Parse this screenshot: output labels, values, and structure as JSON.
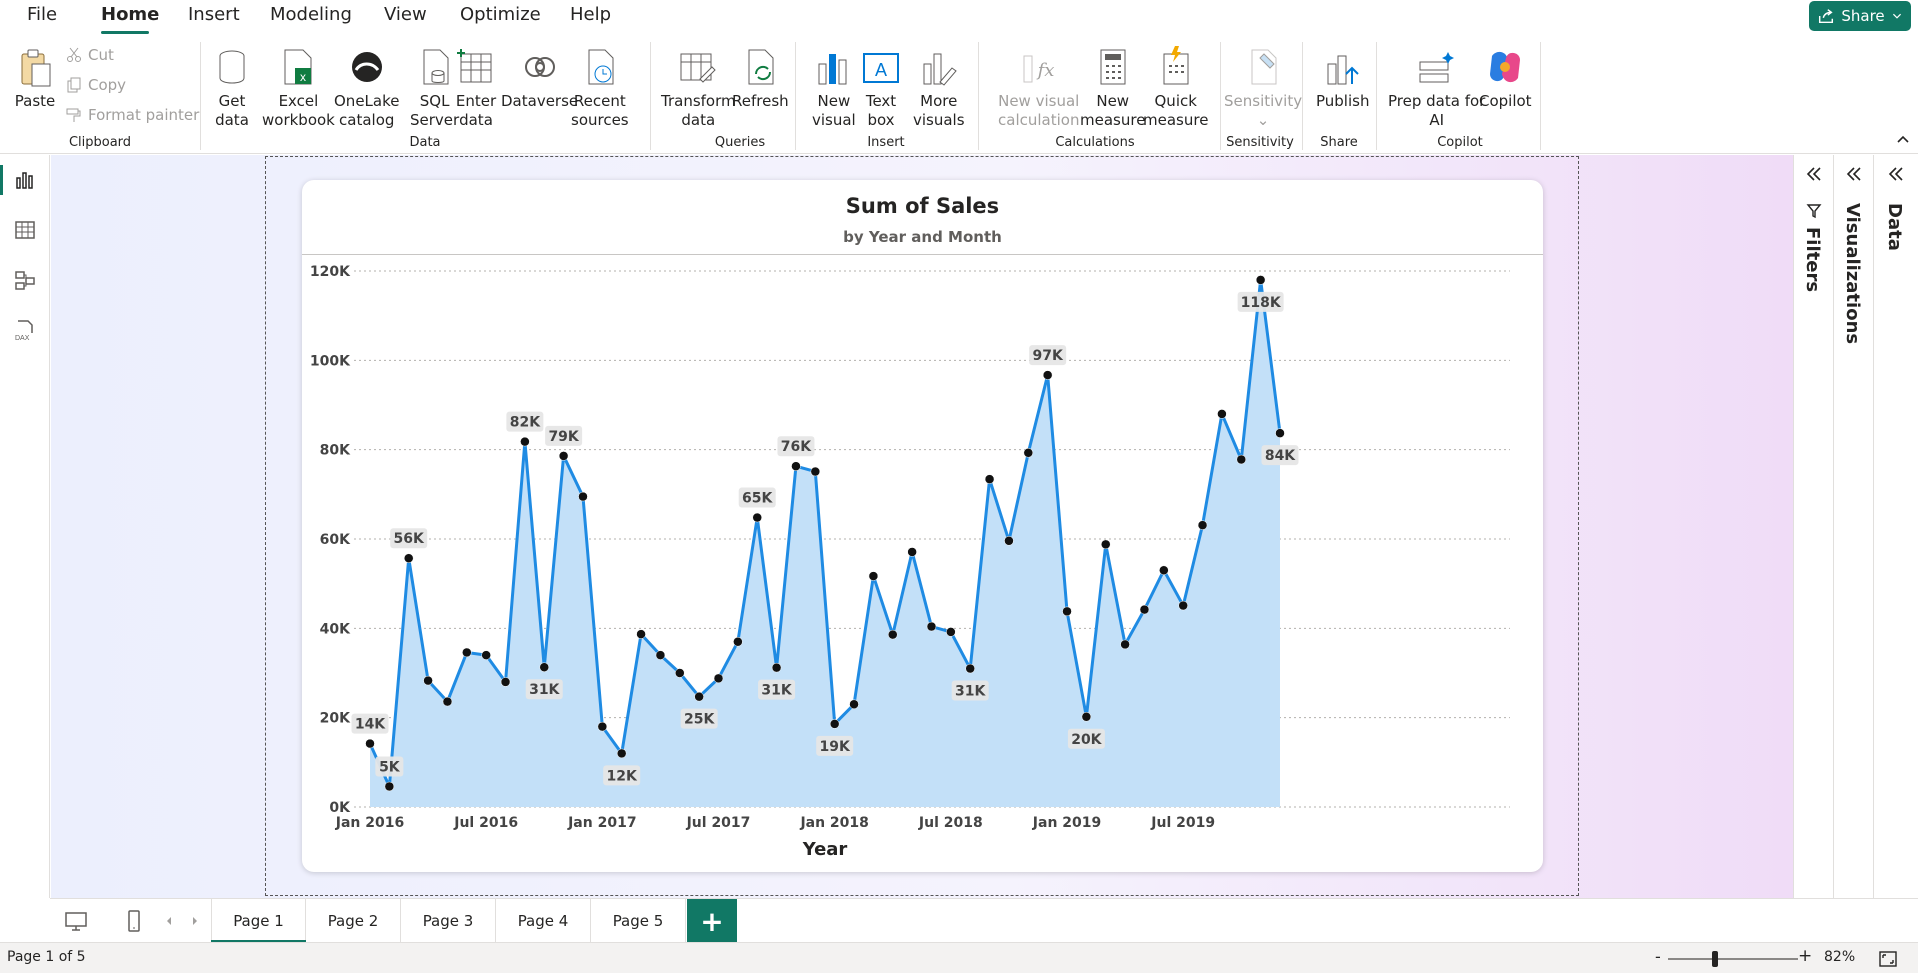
{
  "menu": {
    "items": [
      "File",
      "Home",
      "Insert",
      "Modeling",
      "View",
      "Optimize",
      "Help"
    ],
    "share_label": "Share"
  },
  "ribbon": {
    "clipboard": {
      "paste": "Paste",
      "cut": "Cut",
      "copy": "Copy",
      "format_painter": "Format painter",
      "label": "Clipboard"
    },
    "data": {
      "get_data": [
        "Get",
        "data"
      ],
      "excel": [
        "Excel",
        "workbook"
      ],
      "onelake": [
        "OneLake",
        "catalog"
      ],
      "sql": [
        "SQL",
        "Server"
      ],
      "enter": [
        "Enter",
        "data"
      ],
      "dataverse": "Dataverse",
      "recent": [
        "Recent",
        "sources"
      ],
      "label": "Data"
    },
    "queries": {
      "transform": [
        "Transform",
        "data"
      ],
      "refresh": "Refresh",
      "label": "Queries"
    },
    "insert": {
      "new_visual": [
        "New",
        "visual"
      ],
      "text_box": [
        "Text",
        "box"
      ],
      "more_visuals": [
        "More",
        "visuals"
      ],
      "label": "Insert"
    },
    "calculations": {
      "new_visual_calc": [
        "New visual",
        "calculation"
      ],
      "new_measure": [
        "New",
        "measure"
      ],
      "quick_measure": [
        "Quick",
        "measure"
      ],
      "label": "Calculations"
    },
    "sensitivity": {
      "button": "Sensitivity",
      "label": "Sensitivity"
    },
    "share": {
      "publish": "Publish",
      "label": "Share"
    },
    "copilot": {
      "prep": [
        "Prep data for",
        "AI"
      ],
      "copilot": "Copilot",
      "label": "Copilot"
    }
  },
  "panes": {
    "filters": "Filters",
    "visualizations": "Visualizations",
    "data": "Data"
  },
  "pages": [
    "Page 1",
    "Page 2",
    "Page 3",
    "Page 4",
    "Page 5"
  ],
  "add_page": "+",
  "status": {
    "text": "Page 1 of 5",
    "zoom_minus": "-",
    "zoom_plus": "+",
    "zoom": "82%",
    "zoom_fraction": 0.36
  },
  "chart_data": {
    "type": "area",
    "title": "Sum of Sales",
    "subtitle": "by Year and Month",
    "xlabel": "Year",
    "ylabel": "",
    "ylim": [
      0,
      120000
    ],
    "yticks": [
      0,
      20000,
      40000,
      60000,
      80000,
      100000,
      120000
    ],
    "ytick_labels": [
      "0K",
      "20K",
      "40K",
      "60K",
      "80K",
      "100K",
      "120K"
    ],
    "xtick_labels": [
      "Jan 2016",
      "Jul 2016",
      "Jan 2017",
      "Jul 2017",
      "Jan 2018",
      "Jul 2018",
      "Jan 2019",
      "Jul 2019"
    ],
    "xtick_indices": [
      0,
      6,
      12,
      18,
      24,
      30,
      36,
      42
    ],
    "grid": true,
    "color": "#1f8be3",
    "fill": "#c3e0f8",
    "months": [
      "Jan 2016",
      "Feb 2016",
      "Mar 2016",
      "Apr 2016",
      "May 2016",
      "Jun 2016",
      "Jul 2016",
      "Aug 2016",
      "Sep 2016",
      "Oct 2016",
      "Nov 2016",
      "Dec 2016",
      "Jan 2017",
      "Feb 2017",
      "Mar 2017",
      "Apr 2017",
      "May 2017",
      "Jun 2017",
      "Jul 2017",
      "Aug 2017",
      "Sep 2017",
      "Oct 2017",
      "Nov 2017",
      "Dec 2017",
      "Jan 2018",
      "Feb 2018",
      "Mar 2018",
      "Apr 2018",
      "May 2018",
      "Jun 2018",
      "Jul 2018",
      "Aug 2018",
      "Sep 2018",
      "Oct 2018",
      "Nov 2018",
      "Dec 2018",
      "Jan 2019",
      "Feb 2019",
      "Mar 2019",
      "Apr 2019",
      "May 2019",
      "Jun 2019",
      "Jul 2019",
      "Aug 2019",
      "Sep 2019",
      "Oct 2019",
      "Nov 2019",
      "Dec 2019"
    ],
    "values": [
      14200,
      4600,
      55700,
      28300,
      23600,
      34600,
      34000,
      28000,
      81800,
      31300,
      78600,
      69500,
      18000,
      12000,
      38700,
      34000,
      30000,
      24700,
      28800,
      37000,
      64800,
      31200,
      76300,
      75100,
      18600,
      23000,
      51700,
      38600,
      57100,
      40400,
      39200,
      31000,
      73400,
      59600,
      79300,
      96700,
      43800,
      20200,
      58800,
      36400,
      44200,
      53000,
      45100,
      63100,
      88000,
      77800,
      118000,
      83700
    ],
    "data_labels": [
      {
        "index": 0,
        "text": "14K",
        "pos": "above"
      },
      {
        "index": 1,
        "text": "5K",
        "pos": "above"
      },
      {
        "index": 2,
        "text": "56K",
        "pos": "above"
      },
      {
        "index": 8,
        "text": "82K",
        "pos": "above"
      },
      {
        "index": 9,
        "text": "31K",
        "pos": "below"
      },
      {
        "index": 10,
        "text": "79K",
        "pos": "above"
      },
      {
        "index": 13,
        "text": "12K",
        "pos": "below"
      },
      {
        "index": 17,
        "text": "25K",
        "pos": "below"
      },
      {
        "index": 20,
        "text": "65K",
        "pos": "above"
      },
      {
        "index": 21,
        "text": "31K",
        "pos": "below"
      },
      {
        "index": 22,
        "text": "76K",
        "pos": "above"
      },
      {
        "index": 24,
        "text": "19K",
        "pos": "below"
      },
      {
        "index": 31,
        "text": "31K",
        "pos": "below"
      },
      {
        "index": 35,
        "text": "97K",
        "pos": "above"
      },
      {
        "index": 37,
        "text": "20K",
        "pos": "below"
      },
      {
        "index": 46,
        "text": "118K",
        "pos": "below"
      },
      {
        "index": 47,
        "text": "84K",
        "pos": "below"
      }
    ]
  }
}
